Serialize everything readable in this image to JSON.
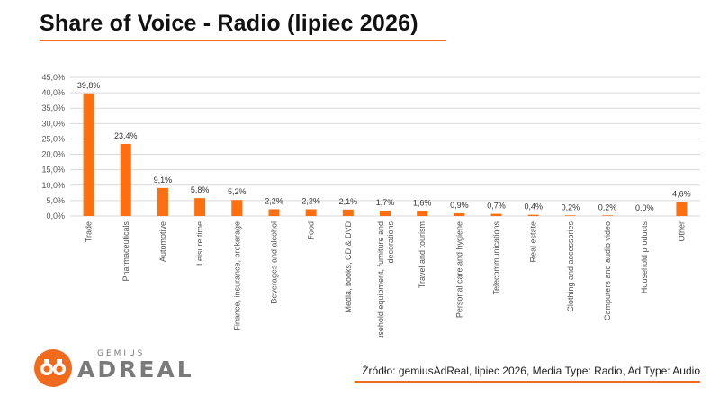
{
  "header": {
    "title": "Share of Voice - Radio (lipiec 2026)"
  },
  "footer": {
    "source": "Źródło: gemiusAdReal, lipiec 2026, Media Type: Radio, Ad Type: Audio",
    "logo_top": "GEMIUS",
    "logo_main": "ADREAL"
  },
  "colors": {
    "accent": "#f26b1d",
    "bar": "#ff6f0f",
    "grid": "#d9d9d9",
    "axis_text": "#555555"
  },
  "chart_data": {
    "type": "bar",
    "categories": [
      "Trade",
      "Pharmaceuticals",
      "Automotive",
      "Leisure time",
      "Finance, insurance, brokerage",
      "Beverages and alcohol",
      "Food",
      "Media, books, CD & DVD",
      "Household equipment, furniture and decorations",
      "Travel and tourism",
      "Personal care and hygiene",
      "Telecommunications",
      "Real estate",
      "Clothing and accessories",
      "Computers and audio video",
      "Household products",
      "Other"
    ],
    "values": [
      39.8,
      23.4,
      9.1,
      5.8,
      5.2,
      2.2,
      2.2,
      2.1,
      1.7,
      1.6,
      0.9,
      0.7,
      0.4,
      0.2,
      0.2,
      0.0,
      4.6
    ],
    "data_labels": [
      "39,8%",
      "23,4%",
      "9,1%",
      "5,8%",
      "5,2%",
      "2,2%",
      "2,2%",
      "2,1%",
      "1,7%",
      "1,6%",
      "0,9%",
      "0,7%",
      "0,4%",
      "0,2%",
      "0,2%",
      "0,0%",
      "4,6%"
    ],
    "y_ticks": [
      0,
      5,
      10,
      15,
      20,
      25,
      30,
      35,
      40,
      45
    ],
    "y_tick_labels": [
      "0,0%",
      "5,0%",
      "10,0%",
      "15,0%",
      "20,0%",
      "25,0%",
      "30,0%",
      "35,0%",
      "40,0%",
      "45,0%"
    ],
    "ylim": [
      0,
      45
    ],
    "grid": true,
    "legend": "none",
    "title": "",
    "xlabel": "",
    "ylabel": ""
  }
}
